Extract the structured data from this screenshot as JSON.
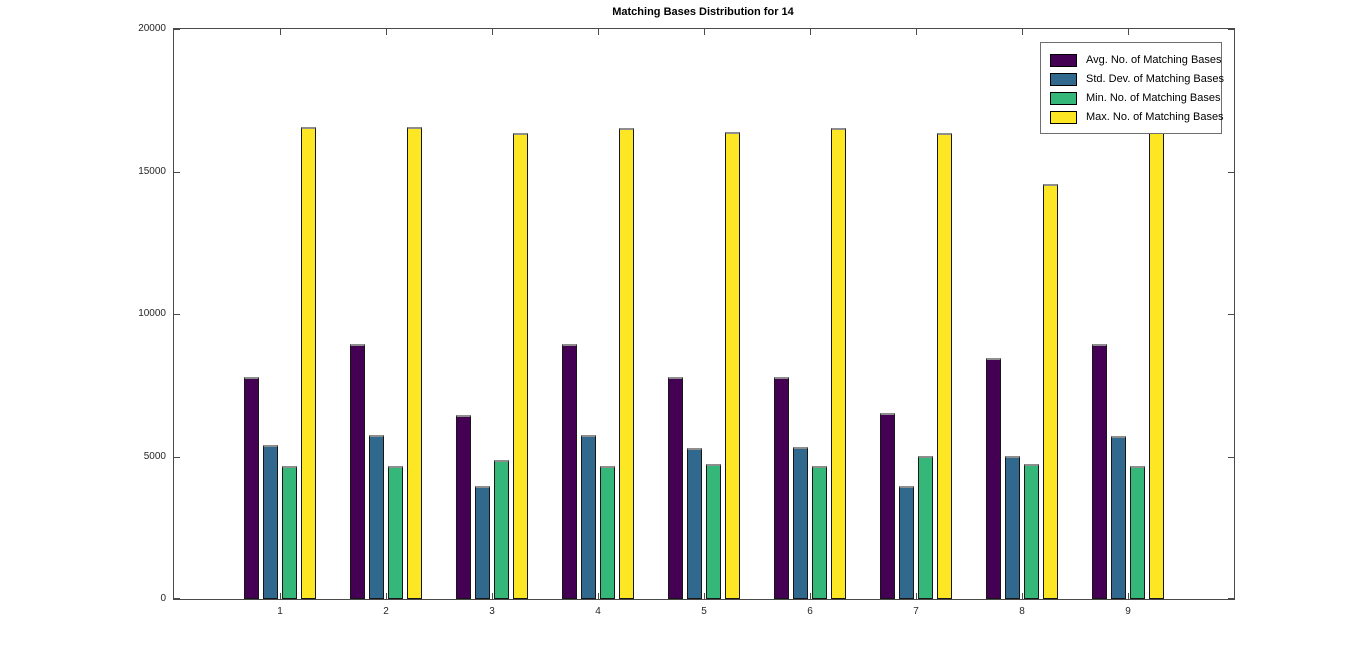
{
  "title": "Matching Bases Distribution for 14",
  "chart_data": {
    "type": "bar",
    "title": "Matching Bases Distribution for 14",
    "xlabel": "",
    "ylabel": "",
    "categories": [
      "1",
      "2",
      "3",
      "4",
      "5",
      "6",
      "7",
      "8",
      "9"
    ],
    "series": [
      {
        "name": "Avg. No. of Matching Bases",
        "color": "#440154",
        "values": [
          7800,
          8950,
          6470,
          8950,
          7780,
          7780,
          6520,
          8460,
          8950
        ]
      },
      {
        "name": "Std. Dev. of Matching Bases",
        "color": "#31688e",
        "values": [
          5400,
          5750,
          3980,
          5750,
          5300,
          5350,
          3980,
          5000,
          5730
        ]
      },
      {
        "name": "Min. No. of Matching Bases",
        "color": "#35b779",
        "values": [
          4650,
          4650,
          4870,
          4650,
          4740,
          4650,
          5030,
          4740,
          4660
        ]
      },
      {
        "name": "Max. No. of Matching Bases",
        "color": "#fde725",
        "values": [
          16550,
          16550,
          16350,
          16530,
          16400,
          16530,
          16350,
          14570,
          16550
        ]
      }
    ],
    "ylim": [
      0,
      20000
    ],
    "yticks": [
      0,
      5000,
      10000,
      15000,
      20000
    ],
    "grid": false,
    "legend_position": "northeast"
  }
}
